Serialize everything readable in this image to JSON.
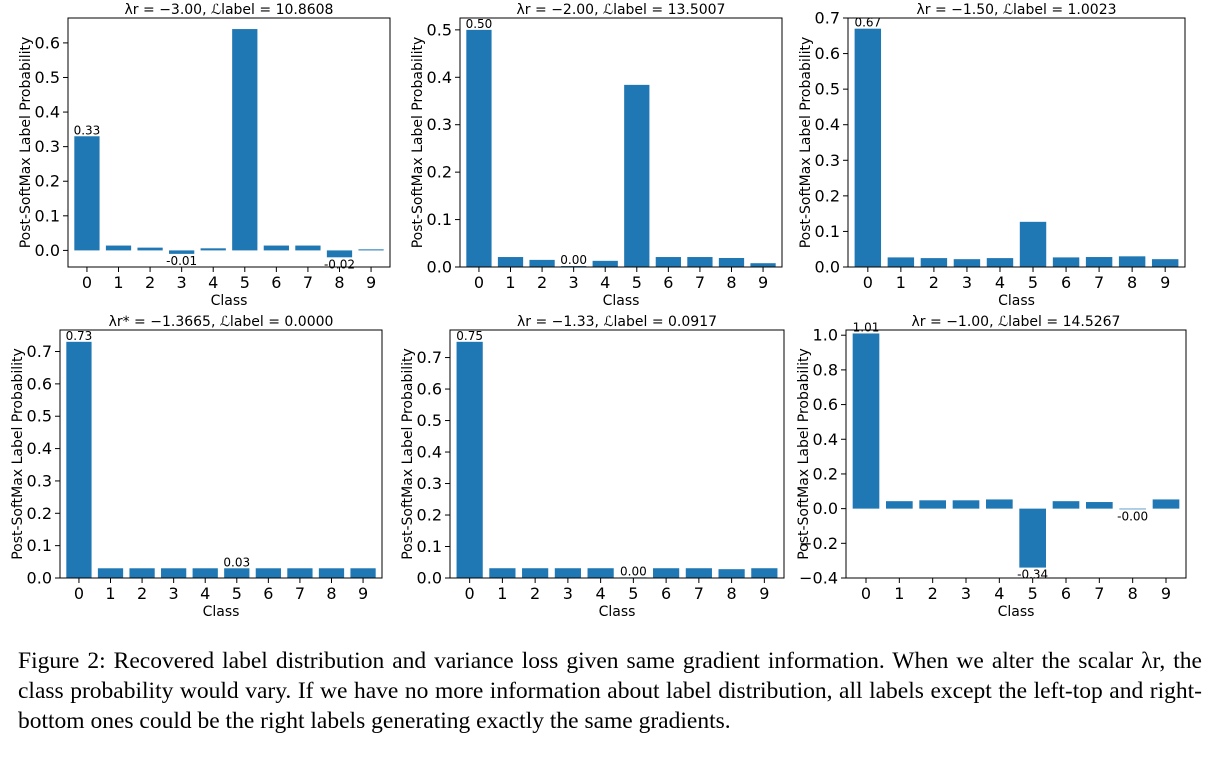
{
  "figure": {
    "caption": "Figure 2: Recovered label distribution and variance loss given same gradient information. When we alter the scalar λr, the class probability would vary. If we have no more information about label distribution, all labels except the left-top and right-bottom ones could be the right labels generating exactly the same gradients."
  },
  "colors": {
    "bar": "#1f77b4"
  },
  "chart_data": [
    {
      "type": "bar",
      "title": "λr = −3.00, ℒlabel = 10.8608",
      "xlabel": "Class",
      "ylabel": "Post-SoftMax Label Probability",
      "categories": [
        "0",
        "1",
        "2",
        "3",
        "4",
        "5",
        "6",
        "7",
        "8",
        "9"
      ],
      "values": [
        0.33,
        0.014,
        0.008,
        -0.01,
        0.006,
        0.64,
        0.014,
        0.014,
        -0.02,
        0.003
      ],
      "data_labels": [
        {
          "index": 0,
          "text": "0.33"
        },
        {
          "index": 3,
          "text": "-0.01"
        },
        {
          "index": 8,
          "text": "-0.02"
        }
      ],
      "yticks": [
        0.0,
        0.1,
        0.2,
        0.3,
        0.4,
        0.5,
        0.6
      ],
      "ytick_labels": [
        "0.0",
        "0.1",
        "0.2",
        "0.3",
        "0.4",
        "0.5",
        "0.6"
      ],
      "ylim": [
        -0.048,
        0.672
      ]
    },
    {
      "type": "bar",
      "title": "λr = −2.00, ℒlabel = 13.5007",
      "xlabel": "Class",
      "ylabel": "Post-SoftMax Label Probability",
      "categories": [
        "0",
        "1",
        "2",
        "3",
        "4",
        "5",
        "6",
        "7",
        "8",
        "9"
      ],
      "values": [
        0.5,
        0.021,
        0.015,
        0.002,
        0.013,
        0.384,
        0.021,
        0.021,
        0.019,
        0.008
      ],
      "data_labels": [
        {
          "index": 0,
          "text": "0.50"
        },
        {
          "index": 3,
          "text": "0.00"
        }
      ],
      "yticks": [
        0.0,
        0.1,
        0.2,
        0.3,
        0.4,
        0.5
      ],
      "ytick_labels": [
        "0.0",
        "0.1",
        "0.2",
        "0.3",
        "0.4",
        "0.5"
      ],
      "ylim": [
        0,
        0.525
      ]
    },
    {
      "type": "bar",
      "title": "λr = −1.50, ℒlabel = 1.0023",
      "xlabel": "Class",
      "ylabel": "Post-SoftMax Label Probability",
      "categories": [
        "0",
        "1",
        "2",
        "3",
        "4",
        "5",
        "6",
        "7",
        "8",
        "9"
      ],
      "values": [
        0.67,
        0.027,
        0.025,
        0.022,
        0.025,
        0.127,
        0.027,
        0.028,
        0.03,
        0.022
      ],
      "data_labels": [
        {
          "index": 0,
          "text": "0.67"
        }
      ],
      "yticks": [
        0.0,
        0.1,
        0.2,
        0.3,
        0.4,
        0.5,
        0.6,
        0.7
      ],
      "ytick_labels": [
        "0.0",
        "0.1",
        "0.2",
        "0.3",
        "0.4",
        "0.5",
        "0.6",
        "0.7"
      ],
      "ylim": [
        0,
        0.7
      ]
    },
    {
      "type": "bar",
      "title": "λr* = −1.3665, ℒlabel = 0.0000",
      "xlabel": "Class",
      "ylabel": "Post-SoftMax Label Probability",
      "categories": [
        "0",
        "1",
        "2",
        "3",
        "4",
        "5",
        "6",
        "7",
        "8",
        "9"
      ],
      "values": [
        0.73,
        0.03,
        0.03,
        0.03,
        0.03,
        0.03,
        0.03,
        0.03,
        0.03,
        0.03
      ],
      "data_labels": [
        {
          "index": 0,
          "text": "0.73"
        },
        {
          "index": 5,
          "text": "0.03"
        }
      ],
      "yticks": [
        0.0,
        0.1,
        0.2,
        0.3,
        0.4,
        0.5,
        0.6,
        0.7
      ],
      "ytick_labels": [
        "0.0",
        "0.1",
        "0.2",
        "0.3",
        "0.4",
        "0.5",
        "0.6",
        "0.7"
      ],
      "ylim": [
        0,
        0.7665
      ]
    },
    {
      "type": "bar",
      "title": "λr = −1.33, ℒlabel = 0.0917",
      "xlabel": "Class",
      "ylabel": "Post-SoftMax Label Probability",
      "categories": [
        "0",
        "1",
        "2",
        "3",
        "4",
        "5",
        "6",
        "7",
        "8",
        "9"
      ],
      "values": [
        0.75,
        0.031,
        0.031,
        0.031,
        0.031,
        0.002,
        0.031,
        0.031,
        0.028,
        0.031
      ],
      "data_labels": [
        {
          "index": 0,
          "text": "0.75"
        },
        {
          "index": 5,
          "text": "0.00"
        }
      ],
      "yticks": [
        0.0,
        0.1,
        0.2,
        0.3,
        0.4,
        0.5,
        0.6,
        0.7
      ],
      "ytick_labels": [
        "0.0",
        "0.1",
        "0.2",
        "0.3",
        "0.4",
        "0.5",
        "0.6",
        "0.7"
      ],
      "ylim": [
        0,
        0.7875
      ]
    },
    {
      "type": "bar",
      "title": "λr = −1.00, ℒlabel = 14.5267",
      "xlabel": "Class",
      "ylabel": "Post-SoftMax Label Probability",
      "categories": [
        "0",
        "1",
        "2",
        "3",
        "4",
        "5",
        "6",
        "7",
        "8",
        "9"
      ],
      "values": [
        1.01,
        0.043,
        0.048,
        0.048,
        0.053,
        -0.34,
        0.043,
        0.038,
        -0.004,
        0.053
      ],
      "data_labels": [
        {
          "index": 0,
          "text": "1.01"
        },
        {
          "index": 5,
          "text": "-0.34"
        },
        {
          "index": 8,
          "text": "-0.00"
        }
      ],
      "yticks": [
        -0.4,
        -0.2,
        0.0,
        0.2,
        0.4,
        0.6,
        0.8,
        1.0
      ],
      "ytick_labels": [
        "−0.4",
        "−0.2",
        "0.0",
        "0.2",
        "0.4",
        "0.6",
        "0.8",
        "1.0"
      ],
      "ylim": [
        -0.4,
        1.03
      ]
    }
  ]
}
